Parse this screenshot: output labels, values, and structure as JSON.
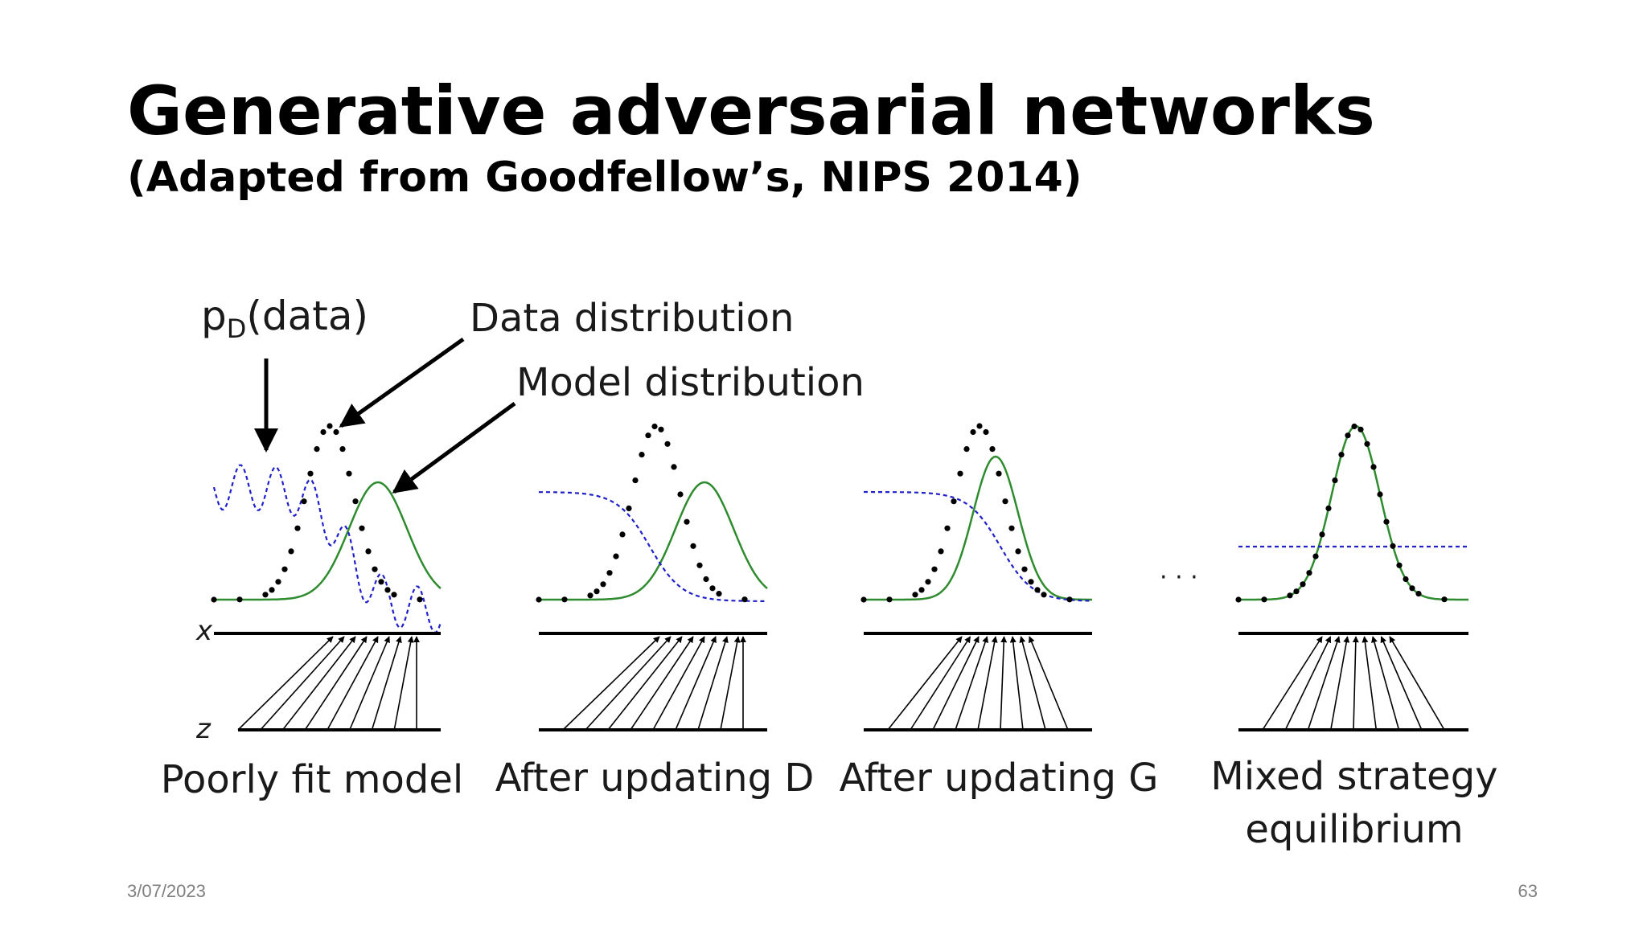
{
  "slide": {
    "title": "Generative adversarial networks",
    "subtitle": "(Adapted from Goodfellow’s, NIPS 2014)",
    "date": "3/07/2023",
    "page_number": "63"
  },
  "diagram": {
    "labels": {
      "pd_base": "p",
      "pd_sub": "D",
      "pd_rest": "(data)",
      "data_distribution": "Data distribution",
      "model_distribution": "Model distribution",
      "axis_x": "x",
      "axis_z": "z",
      "ellipsis": "· · ·"
    },
    "panels": [
      {
        "caption": "Poorly fit model"
      },
      {
        "caption": "After updating D"
      },
      {
        "caption": "After updating G"
      },
      {
        "caption_line1": "Mixed strategy",
        "caption_line2": "equilibrium"
      }
    ],
    "colors": {
      "data_distribution": "#000000",
      "model_distribution": "#2e8b2e",
      "discriminator": "#1f1fcc",
      "axis": "#000000"
    }
  }
}
